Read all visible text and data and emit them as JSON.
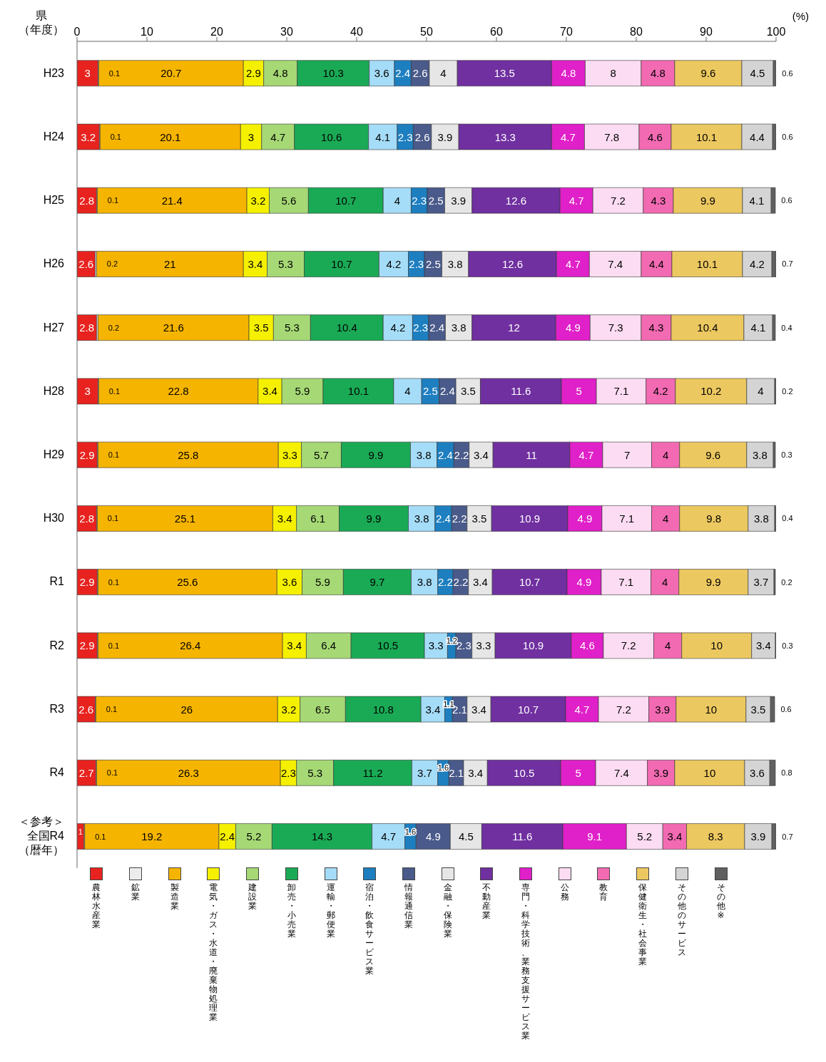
{
  "chart_data": {
    "type": "bar",
    "orientation": "horizontal",
    "stacked": true,
    "data_labels": true,
    "legend": "bottom",
    "xlabel": "(%)",
    "ylabel": "県（年度）",
    "xlim": [
      0,
      100
    ],
    "xticks": [
      0,
      10,
      20,
      30,
      40,
      50,
      60,
      70,
      80,
      90,
      100
    ],
    "categories": [
      "H23",
      "H24",
      "H25",
      "H26",
      "H27",
      "H28",
      "H29",
      "H30",
      "R1",
      "R2",
      "R3",
      "R4",
      "＜参考＞全国R4（暦年）"
    ],
    "series": [
      {
        "name": "農林水産業",
        "color": "#e8231f",
        "values": [
          3.0,
          3.2,
          2.8,
          2.6,
          2.8,
          3.0,
          2.9,
          2.8,
          2.9,
          2.9,
          2.6,
          2.7,
          1.0
        ]
      },
      {
        "name": "鉱業",
        "color": "#ececec",
        "values": [
          0.1,
          0.1,
          0.1,
          0.2,
          0.2,
          0.1,
          0.1,
          0.1,
          0.1,
          0.1,
          0.1,
          0.1,
          0.1
        ]
      },
      {
        "name": "製造業",
        "color": "#f5b400",
        "values": [
          20.7,
          20.1,
          21.4,
          21.0,
          21.6,
          22.8,
          25.8,
          25.1,
          25.6,
          26.4,
          26.0,
          26.3,
          19.2
        ]
      },
      {
        "name": "電気・ガス・水道・廃棄物処理業",
        "color": "#f5f000",
        "values": [
          2.9,
          3.0,
          3.2,
          3.4,
          3.5,
          3.4,
          3.3,
          3.4,
          3.6,
          3.4,
          3.2,
          2.3,
          2.4
        ]
      },
      {
        "name": "建設業",
        "color": "#a6d875",
        "values": [
          4.8,
          4.7,
          5.6,
          5.3,
          5.3,
          5.9,
          5.7,
          6.1,
          5.9,
          6.4,
          6.5,
          5.3,
          5.2
        ]
      },
      {
        "name": "卸売・小売業",
        "color": "#1aaa55",
        "values": [
          10.3,
          10.6,
          10.7,
          10.7,
          10.4,
          10.1,
          9.9,
          9.9,
          9.7,
          10.5,
          10.8,
          11.2,
          14.3
        ]
      },
      {
        "name": "運輸・郵便業",
        "color": "#a5dcf7",
        "values": [
          3.6,
          4.1,
          4.0,
          4.2,
          4.2,
          4.0,
          3.8,
          3.8,
          3.8,
          3.3,
          3.4,
          3.7,
          4.7
        ]
      },
      {
        "name": "宿泊・飲食サービス業",
        "color": "#1e7fc0",
        "values": [
          2.4,
          2.3,
          2.3,
          2.3,
          2.3,
          2.5,
          2.4,
          2.4,
          2.2,
          1.2,
          1.1,
          1.6,
          1.6
        ]
      },
      {
        "name": "情報通信業",
        "color": "#4a5a8a",
        "values": [
          2.6,
          2.6,
          2.5,
          2.5,
          2.4,
          2.4,
          2.2,
          2.2,
          2.2,
          2.3,
          2.1,
          2.1,
          4.9
        ]
      },
      {
        "name": "金融・保険業",
        "color": "#e6e6e6",
        "values": [
          4.0,
          3.9,
          3.9,
          3.8,
          3.8,
          3.5,
          3.4,
          3.5,
          3.4,
          3.3,
          3.4,
          3.4,
          4.5
        ]
      },
      {
        "name": "不動産業",
        "color": "#7030a0",
        "values": [
          13.5,
          13.3,
          12.6,
          12.6,
          12.0,
          11.6,
          11.0,
          10.9,
          10.7,
          10.9,
          10.7,
          10.5,
          11.6
        ]
      },
      {
        "name": "専門・科学技術、業務支援サービス業",
        "color": "#e020c8",
        "values": [
          4.8,
          4.7,
          4.7,
          4.7,
          4.9,
          5.0,
          4.7,
          4.9,
          4.9,
          4.6,
          4.7,
          5.0,
          9.1
        ]
      },
      {
        "name": "公務",
        "color": "#fcdcf2",
        "values": [
          8.0,
          7.8,
          7.2,
          7.4,
          7.3,
          7.1,
          7.0,
          7.1,
          7.1,
          7.2,
          7.2,
          7.4,
          5.2
        ]
      },
      {
        "name": "教育",
        "color": "#f26ab2",
        "values": [
          4.8,
          4.6,
          4.3,
          4.4,
          4.3,
          4.2,
          4.0,
          4.0,
          4.0,
          4.0,
          3.9,
          3.9,
          3.4
        ]
      },
      {
        "name": "保健衛生・社会事業",
        "color": "#ecc860",
        "values": [
          9.6,
          10.1,
          9.9,
          10.1,
          10.4,
          10.2,
          9.6,
          9.8,
          9.9,
          10.0,
          10.0,
          10.0,
          8.3
        ]
      },
      {
        "name": "その他のサービス",
        "color": "#d4d4d4",
        "values": [
          4.5,
          4.4,
          4.1,
          4.2,
          4.1,
          4.0,
          3.8,
          3.8,
          3.7,
          3.4,
          3.5,
          3.6,
          3.9
        ]
      },
      {
        "name": "その他※",
        "color": "#606060",
        "values": [
          0.6,
          0.6,
          0.6,
          0.7,
          0.4,
          0.2,
          0.3,
          0.4,
          0.2,
          0.3,
          0.6,
          0.8,
          0.7
        ]
      }
    ]
  }
}
